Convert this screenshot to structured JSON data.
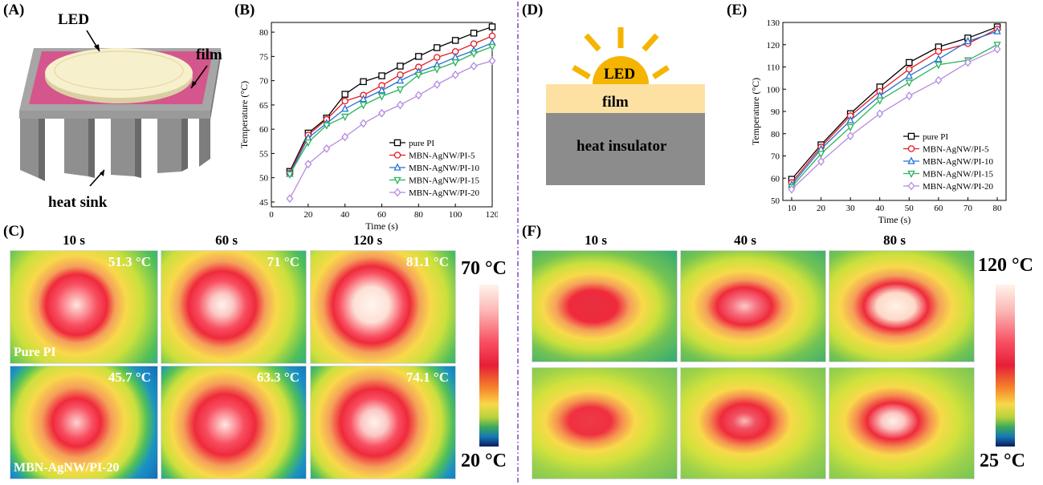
{
  "panels": {
    "A": {
      "label": "(A)",
      "callouts": {
        "led": "LED",
        "film": "film",
        "sink": "heat sink"
      }
    },
    "B": {
      "label": "(B)"
    },
    "C": {
      "label": "(C)",
      "times": [
        "10 s",
        "60 s",
        "120 s"
      ],
      "rows": [
        {
          "sample": "Pure PI",
          "temps": [
            "51.3 °C",
            "71 °C",
            "81.1 °C"
          ]
        },
        {
          "sample": "MBN-AgNW/PI-20",
          "temps": [
            "45.7 °C",
            "63.3 °C",
            "74.1 °C"
          ]
        }
      ],
      "colorbar": {
        "max": "70 °C",
        "min": "20 °C"
      }
    },
    "D": {
      "label": "(D)",
      "led": "LED",
      "film": "film",
      "insulator": "heat insulator"
    },
    "E": {
      "label": "(E)"
    },
    "F": {
      "label": "(F)",
      "times": [
        "10 s",
        "40 s",
        "80 s"
      ],
      "colorbar": {
        "max": "120 °C",
        "min": "25 °C"
      }
    }
  },
  "colors": {
    "pure_PI": "#000000",
    "MBN_AgNW_PI_5": "#e8181e",
    "MBN_AgNW_PI_10": "#2472d4",
    "MBN_AgNW_PI_15": "#2bb35a",
    "MBN_AgNW_PI_20": "#b58ae0",
    "divider": "#8a4fc4",
    "pad": "#d4568c",
    "led": "#f7f0cc",
    "sun": "#f5b400",
    "film_D": "#fde1a2",
    "insulator": "#8c8c8c"
  },
  "chart_data": [
    {
      "id": "B",
      "type": "line",
      "xlabel": "Time (s)",
      "ylabel": "Temperature (°C)",
      "xlim": [
        0,
        120
      ],
      "ylim": [
        44,
        82
      ],
      "xticks": [
        0,
        20,
        40,
        60,
        80,
        100,
        120
      ],
      "yticks": [
        45,
        50,
        55,
        60,
        65,
        70,
        75,
        80
      ],
      "x": [
        10,
        20,
        30,
        40,
        50,
        60,
        70,
        80,
        90,
        100,
        110,
        120
      ],
      "series": [
        {
          "name": "pure PI",
          "marker": "square",
          "values": [
            51.3,
            59.2,
            62.3,
            67.2,
            69.8,
            71.0,
            73.0,
            75.0,
            76.8,
            78.3,
            79.8,
            81.1
          ]
        },
        {
          "name": "MBN-AgNW/PI-5",
          "marker": "circle",
          "values": [
            51.0,
            58.8,
            62.0,
            65.8,
            67.0,
            69.0,
            71.2,
            72.8,
            74.8,
            76.0,
            77.6,
            79.2
          ]
        },
        {
          "name": "MBN-AgNW/PI-10",
          "marker": "triangle-up",
          "values": [
            50.8,
            58.2,
            61.2,
            64.2,
            66.2,
            68.0,
            70.0,
            71.8,
            73.2,
            74.8,
            76.2,
            77.8
          ]
        },
        {
          "name": "MBN-AgNW/PI-15",
          "marker": "triangle-down",
          "values": [
            50.7,
            57.3,
            60.8,
            62.6,
            65.0,
            66.8,
            68.2,
            71.2,
            72.4,
            73.8,
            75.6,
            77.0
          ]
        },
        {
          "name": "MBN-AgNW/PI-20",
          "marker": "diamond",
          "values": [
            45.7,
            52.8,
            56.0,
            58.4,
            61.2,
            63.3,
            65.0,
            67.0,
            69.2,
            71.2,
            73.0,
            74.1
          ]
        }
      ],
      "legend_position": "bottom-right"
    },
    {
      "id": "E",
      "type": "line",
      "xlabel": "Time (s)",
      "ylabel": "Temperature (°C)",
      "xlim": [
        7,
        83
      ],
      "ylim": [
        50,
        130
      ],
      "xticks": [
        10,
        20,
        30,
        40,
        50,
        60,
        70,
        80
      ],
      "yticks": [
        50,
        60,
        70,
        80,
        90,
        100,
        110,
        120,
        130
      ],
      "x": [
        10,
        20,
        30,
        40,
        50,
        60,
        70,
        80
      ],
      "series": [
        {
          "name": "pure PI",
          "marker": "square",
          "values": [
            59.5,
            75.0,
            89.0,
            101.0,
            112.0,
            119.0,
            123.0,
            128.0
          ]
        },
        {
          "name": "MBN-AgNW/PI-5",
          "marker": "circle",
          "values": [
            58.0,
            74.0,
            88.0,
            99.0,
            109.0,
            117.0,
            120.5,
            127.0
          ]
        },
        {
          "name": "MBN-AgNW/PI-10",
          "marker": "triangle-up",
          "values": [
            57.0,
            73.0,
            86.0,
            97.0,
            106.0,
            113.5,
            121.5,
            126.0
          ]
        },
        {
          "name": "MBN-AgNW/PI-15",
          "marker": "triangle-down",
          "values": [
            56.0,
            71.0,
            83.0,
            95.0,
            103.0,
            111.0,
            113.0,
            120.0
          ]
        },
        {
          "name": "MBN-AgNW/PI-20",
          "marker": "diamond",
          "values": [
            55.0,
            67.5,
            79.0,
            89.0,
            97.0,
            104.0,
            112.0,
            118.0
          ]
        }
      ],
      "legend_position": "bottom-right"
    }
  ]
}
